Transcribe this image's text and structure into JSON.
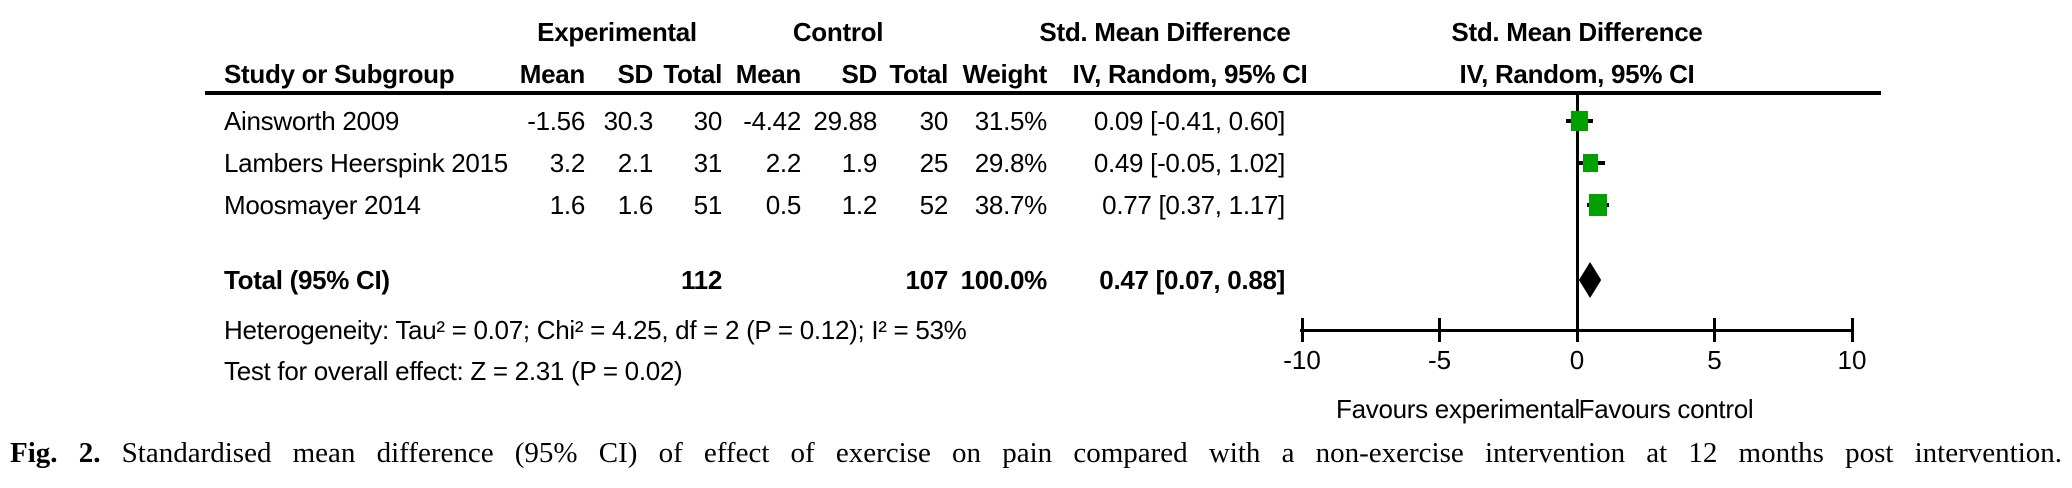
{
  "table": {
    "group_headers": {
      "experimental": "Experimental",
      "control": "Control",
      "smd_left": "Std. Mean Difference",
      "smd_right": "Std. Mean Difference"
    },
    "sub_headers": {
      "study": "Study or Subgroup",
      "mean_exp": "Mean",
      "sd_exp": "SD",
      "total_exp": "Total",
      "mean_ctl": "Mean",
      "sd_ctl": "SD",
      "total_ctl": "Total",
      "weight": "Weight",
      "ci_left": "IV, Random, 95% CI",
      "ci_right": "IV, Random, 95% CI"
    },
    "rows": [
      {
        "study": "Ainsworth 2009",
        "mean_exp": "-1.56",
        "sd_exp": "30.3",
        "total_exp": "30",
        "mean_ctl": "-4.42",
        "sd_ctl": "29.88",
        "total_ctl": "30",
        "weight": "31.5%",
        "ci": "0.09 [-0.41, 0.60]"
      },
      {
        "study": "Lambers Heerspink 2015",
        "mean_exp": "3.2",
        "sd_exp": "2.1",
        "total_exp": "31",
        "mean_ctl": "2.2",
        "sd_ctl": "1.9",
        "total_ctl": "25",
        "weight": "29.8%",
        "ci": "0.49 [-0.05, 1.02]"
      },
      {
        "study": "Moosmayer 2014",
        "mean_exp": "1.6",
        "sd_exp": "1.6",
        "total_exp": "51",
        "mean_ctl": "0.5",
        "sd_ctl": "1.2",
        "total_ctl": "52",
        "weight": "38.7%",
        "ci": "0.77 [0.37, 1.17]"
      }
    ],
    "total_row": {
      "label": "Total (95% CI)",
      "total_exp": "112",
      "total_ctl": "107",
      "weight": "100.0%",
      "ci": "0.47 [0.07, 0.88]"
    },
    "heterogeneity": "Heterogeneity: Tau² = 0.07; Chi² = 4.25, df = 2 (P = 0.12); I² = 53%",
    "overall_effect": "Test for overall effect: Z = 2.31 (P = 0.02)"
  },
  "chart_data": {
    "type": "forest",
    "base_type": "scatter",
    "title": "Std. Mean Difference — IV, Random, 95% CI",
    "x_axis": {
      "min": -10,
      "max": 10,
      "ticks": [
        -10,
        -5,
        0,
        5,
        10
      ]
    },
    "studies": [
      {
        "name": "Ainsworth 2009",
        "estimate": 0.09,
        "ci_lower": -0.41,
        "ci_upper": 0.6,
        "weight_pct": 31.5
      },
      {
        "name": "Lambers Heerspink 2015",
        "estimate": 0.49,
        "ci_lower": -0.05,
        "ci_upper": 1.02,
        "weight_pct": 29.8
      },
      {
        "name": "Moosmayer 2014",
        "estimate": 0.77,
        "ci_lower": 0.37,
        "ci_upper": 1.17,
        "weight_pct": 38.7
      }
    ],
    "overall": {
      "estimate": 0.47,
      "ci_lower": 0.07,
      "ci_upper": 0.88
    },
    "favours_left": "Favours experimental",
    "favours_right": "Favours control",
    "marker_color": "#00A000",
    "diamond_color": "#000000"
  },
  "caption": {
    "label": "Fig. 2.",
    "text": "Standardised mean difference (95% CI) of effect of exercise on pain compared with a non-exercise intervention at 12 months post intervention."
  }
}
